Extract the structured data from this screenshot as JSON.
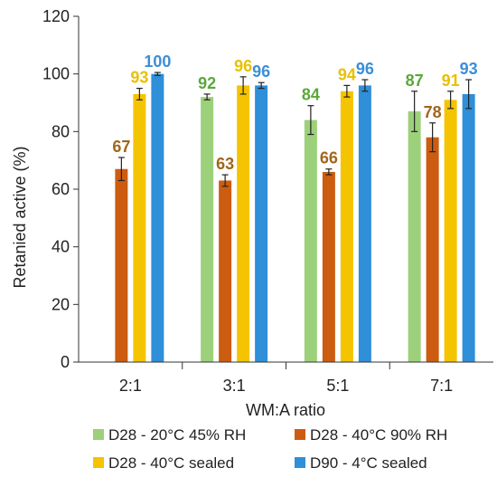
{
  "chart_data": {
    "type": "bar",
    "xlabel": "WM:A ratio",
    "ylabel": "Retanied active (%)",
    "ylim": [
      0,
      120
    ],
    "yticks": [
      0,
      20,
      40,
      60,
      80,
      100,
      120
    ],
    "categories": [
      "2:1",
      "3:1",
      "5:1",
      "7:1"
    ],
    "legend_position": "bottom",
    "series": [
      {
        "name": "D28 - 20°C 45% RH",
        "color": "#9dd07a",
        "label_color": "#5aa83a",
        "values": [
          null,
          92,
          84,
          87
        ],
        "errors": [
          null,
          1,
          5,
          7
        ],
        "labels": [
          "",
          "92",
          "84",
          "87"
        ]
      },
      {
        "name": "D28 - 40°C 90% RH",
        "color": "#cc5c10",
        "label_color": "#a0651c",
        "values": [
          67,
          63,
          66,
          78
        ],
        "errors": [
          4,
          2,
          1,
          5
        ],
        "labels": [
          "67",
          "63",
          "66",
          "78"
        ]
      },
      {
        "name": "D28 - 40°C sealed",
        "color": "#f5c400",
        "label_color": "#e8c000",
        "values": [
          93,
          96,
          94,
          91
        ],
        "errors": [
          2,
          3,
          2,
          3
        ],
        "labels": [
          "93",
          "96",
          "94",
          "91"
        ]
      },
      {
        "name": "D90 - 4°C sealed",
        "color": "#2f8fd8",
        "label_color": "#3a8fd8",
        "values": [
          100,
          96,
          96,
          93
        ],
        "errors": [
          0.5,
          1,
          2,
          5
        ],
        "labels": [
          "100",
          "96",
          "96",
          "93"
        ]
      }
    ]
  }
}
